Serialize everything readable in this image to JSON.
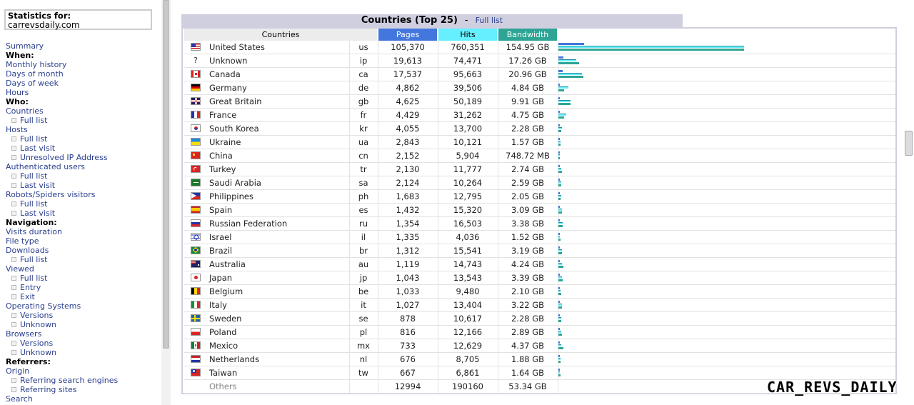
{
  "nav": {
    "stats_title": "Statistics for:",
    "site": "carrevsdaily.com",
    "items": [
      {
        "label": "Summary",
        "type": "link"
      },
      {
        "label": "When:",
        "type": "head"
      },
      {
        "label": "Monthly history",
        "type": "link"
      },
      {
        "label": "Days of month",
        "type": "link"
      },
      {
        "label": "Days of week",
        "type": "link"
      },
      {
        "label": "Hours",
        "type": "link"
      },
      {
        "label": "Who:",
        "type": "head"
      },
      {
        "label": "Countries",
        "type": "link"
      },
      {
        "label": "Full list",
        "type": "sub"
      },
      {
        "label": "Hosts",
        "type": "link"
      },
      {
        "label": "Full list",
        "type": "sub"
      },
      {
        "label": "Last visit",
        "type": "sub"
      },
      {
        "label": "Unresolved IP Address",
        "type": "sub"
      },
      {
        "label": "Authenticated users",
        "type": "link"
      },
      {
        "label": "Full list",
        "type": "sub"
      },
      {
        "label": "Last visit",
        "type": "sub"
      },
      {
        "label": "Robots/Spiders visitors",
        "type": "link"
      },
      {
        "label": "Full list",
        "type": "sub"
      },
      {
        "label": "Last visit",
        "type": "sub"
      },
      {
        "label": "Navigation:",
        "type": "head"
      },
      {
        "label": "Visits duration",
        "type": "link"
      },
      {
        "label": "File type",
        "type": "link"
      },
      {
        "label": "Downloads",
        "type": "link"
      },
      {
        "label": "Full list",
        "type": "sub"
      },
      {
        "label": "Viewed",
        "type": "link"
      },
      {
        "label": "Full list",
        "type": "sub"
      },
      {
        "label": "Entry",
        "type": "sub"
      },
      {
        "label": "Exit",
        "type": "sub"
      },
      {
        "label": "Operating Systems",
        "type": "link"
      },
      {
        "label": "Versions",
        "type": "sub"
      },
      {
        "label": "Unknown",
        "type": "sub"
      },
      {
        "label": "Browsers",
        "type": "link"
      },
      {
        "label": "Versions",
        "type": "sub"
      },
      {
        "label": "Unknown",
        "type": "sub"
      },
      {
        "label": "Referrers:",
        "type": "head"
      },
      {
        "label": "Origin",
        "type": "link"
      },
      {
        "label": "Referring search engines",
        "type": "sub"
      },
      {
        "label": "Referring sites",
        "type": "sub"
      },
      {
        "label": "Search",
        "type": "link"
      }
    ]
  },
  "main": {
    "title": "Countries (Top 25)",
    "separator": "-",
    "full_list_link": "Full list",
    "headers": {
      "countries": "Countries",
      "pages": "Pages",
      "hits": "Hits",
      "bandwidth": "Bandwidth"
    },
    "colors": {
      "pages": "#4477dd",
      "hits": "#66f0ff",
      "bandwidth": "#2ea495"
    },
    "rows": [
      {
        "name": "United States",
        "code": "us",
        "pages": "105,370",
        "hits": "760,351",
        "bw": "154.95 GB",
        "flag": "us-flag-icon"
      },
      {
        "name": "Unknown",
        "code": "ip",
        "pages": "19,613",
        "hits": "74,471",
        "bw": "17.26 GB",
        "flag": "unknown-icon"
      },
      {
        "name": "Canada",
        "code": "ca",
        "pages": "17,537",
        "hits": "95,663",
        "bw": "20.96 GB",
        "flag": "ca-flag-icon"
      },
      {
        "name": "Germany",
        "code": "de",
        "pages": "4,862",
        "hits": "39,506",
        "bw": "4.84 GB",
        "flag": "de-flag-icon"
      },
      {
        "name": "Great Britain",
        "code": "gb",
        "pages": "4,625",
        "hits": "50,189",
        "bw": "9.91 GB",
        "flag": "gb-flag-icon"
      },
      {
        "name": "France",
        "code": "fr",
        "pages": "4,429",
        "hits": "31,262",
        "bw": "4.75 GB",
        "flag": "fr-flag-icon"
      },
      {
        "name": "South Korea",
        "code": "kr",
        "pages": "4,055",
        "hits": "13,700",
        "bw": "2.28 GB",
        "flag": "kr-flag-icon"
      },
      {
        "name": "Ukraine",
        "code": "ua",
        "pages": "2,843",
        "hits": "10,121",
        "bw": "1.57 GB",
        "flag": "ua-flag-icon"
      },
      {
        "name": "China",
        "code": "cn",
        "pages": "2,152",
        "hits": "5,904",
        "bw": "748.72 MB",
        "flag": "cn-flag-icon"
      },
      {
        "name": "Turkey",
        "code": "tr",
        "pages": "2,130",
        "hits": "11,777",
        "bw": "2.74 GB",
        "flag": "tr-flag-icon"
      },
      {
        "name": "Saudi Arabia",
        "code": "sa",
        "pages": "2,124",
        "hits": "10,264",
        "bw": "2.59 GB",
        "flag": "sa-flag-icon"
      },
      {
        "name": "Philippines",
        "code": "ph",
        "pages": "1,683",
        "hits": "12,795",
        "bw": "2.05 GB",
        "flag": "ph-flag-icon"
      },
      {
        "name": "Spain",
        "code": "es",
        "pages": "1,432",
        "hits": "15,320",
        "bw": "3.09 GB",
        "flag": "es-flag-icon"
      },
      {
        "name": "Russian Federation",
        "code": "ru",
        "pages": "1,354",
        "hits": "16,503",
        "bw": "3.38 GB",
        "flag": "ru-flag-icon"
      },
      {
        "name": "Israel",
        "code": "il",
        "pages": "1,335",
        "hits": "4,036",
        "bw": "1.52 GB",
        "flag": "il-flag-icon"
      },
      {
        "name": "Brazil",
        "code": "br",
        "pages": "1,312",
        "hits": "15,541",
        "bw": "3.19 GB",
        "flag": "br-flag-icon"
      },
      {
        "name": "Australia",
        "code": "au",
        "pages": "1,119",
        "hits": "14,743",
        "bw": "4.24 GB",
        "flag": "au-flag-icon"
      },
      {
        "name": "Japan",
        "code": "jp",
        "pages": "1,043",
        "hits": "13,543",
        "bw": "3.39 GB",
        "flag": "jp-flag-icon"
      },
      {
        "name": "Belgium",
        "code": "be",
        "pages": "1,033",
        "hits": "9,480",
        "bw": "2.10 GB",
        "flag": "be-flag-icon"
      },
      {
        "name": "Italy",
        "code": "it",
        "pages": "1,027",
        "hits": "13,404",
        "bw": "3.22 GB",
        "flag": "it-flag-icon"
      },
      {
        "name": "Sweden",
        "code": "se",
        "pages": "878",
        "hits": "10,617",
        "bw": "2.28 GB",
        "flag": "se-flag-icon"
      },
      {
        "name": "Poland",
        "code": "pl",
        "pages": "816",
        "hits": "12,166",
        "bw": "2.89 GB",
        "flag": "pl-flag-icon"
      },
      {
        "name": "Mexico",
        "code": "mx",
        "pages": "733",
        "hits": "12,629",
        "bw": "4.37 GB",
        "flag": "mx-flag-icon"
      },
      {
        "name": "Netherlands",
        "code": "nl",
        "pages": "676",
        "hits": "8,705",
        "bw": "1.88 GB",
        "flag": "nl-flag-icon"
      },
      {
        "name": "Taiwan",
        "code": "tw",
        "pages": "667",
        "hits": "6,861",
        "bw": "1.64 GB",
        "flag": "tw-flag-icon"
      }
    ],
    "others": {
      "name": "Others",
      "pages": "12994",
      "hits": "190160",
      "bw": "53.34 GB"
    }
  },
  "watermark": "CAR_REVS_DAILY"
}
